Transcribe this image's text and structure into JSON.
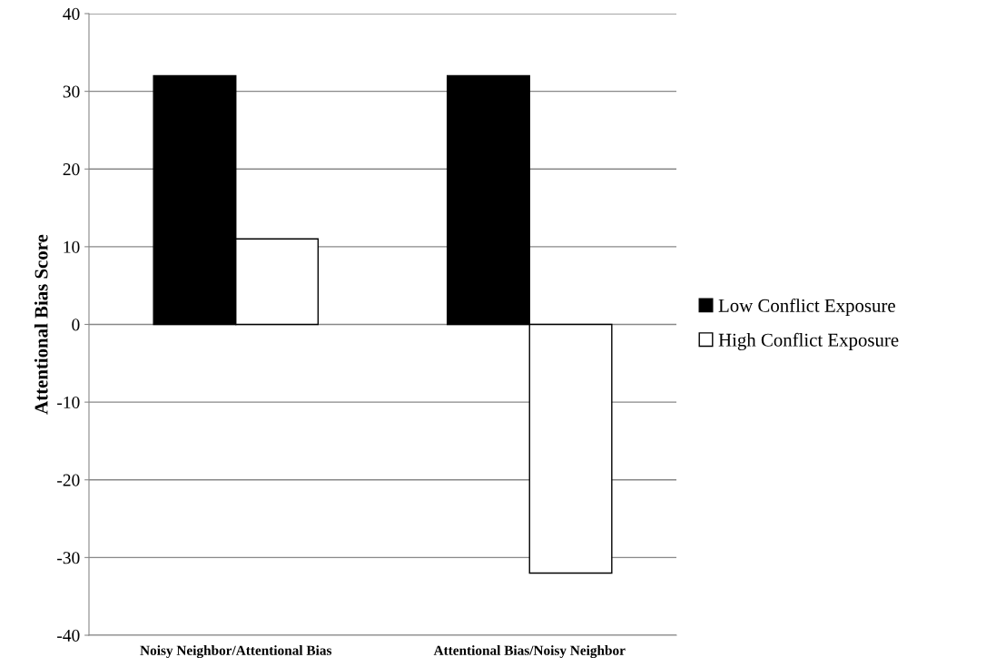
{
  "chart_data": {
    "type": "bar",
    "ylabel": "Attentional Bias Score",
    "categories": [
      "Noisy Neighbor/Attentional Bias",
      "Attentional Bias/Noisy Neighbor"
    ],
    "series": [
      {
        "name": "Low Conflict Exposure",
        "color": "#000000",
        "values": [
          32,
          32
        ]
      },
      {
        "name": "High Conflict Exposure",
        "color": "#ffffff",
        "values": [
          11,
          -32
        ]
      }
    ],
    "ylim": [
      -40,
      40
    ],
    "yticks": [
      -40,
      -30,
      -20,
      -10,
      0,
      10,
      20,
      30,
      40
    ],
    "grid": "y",
    "legend": "right"
  }
}
